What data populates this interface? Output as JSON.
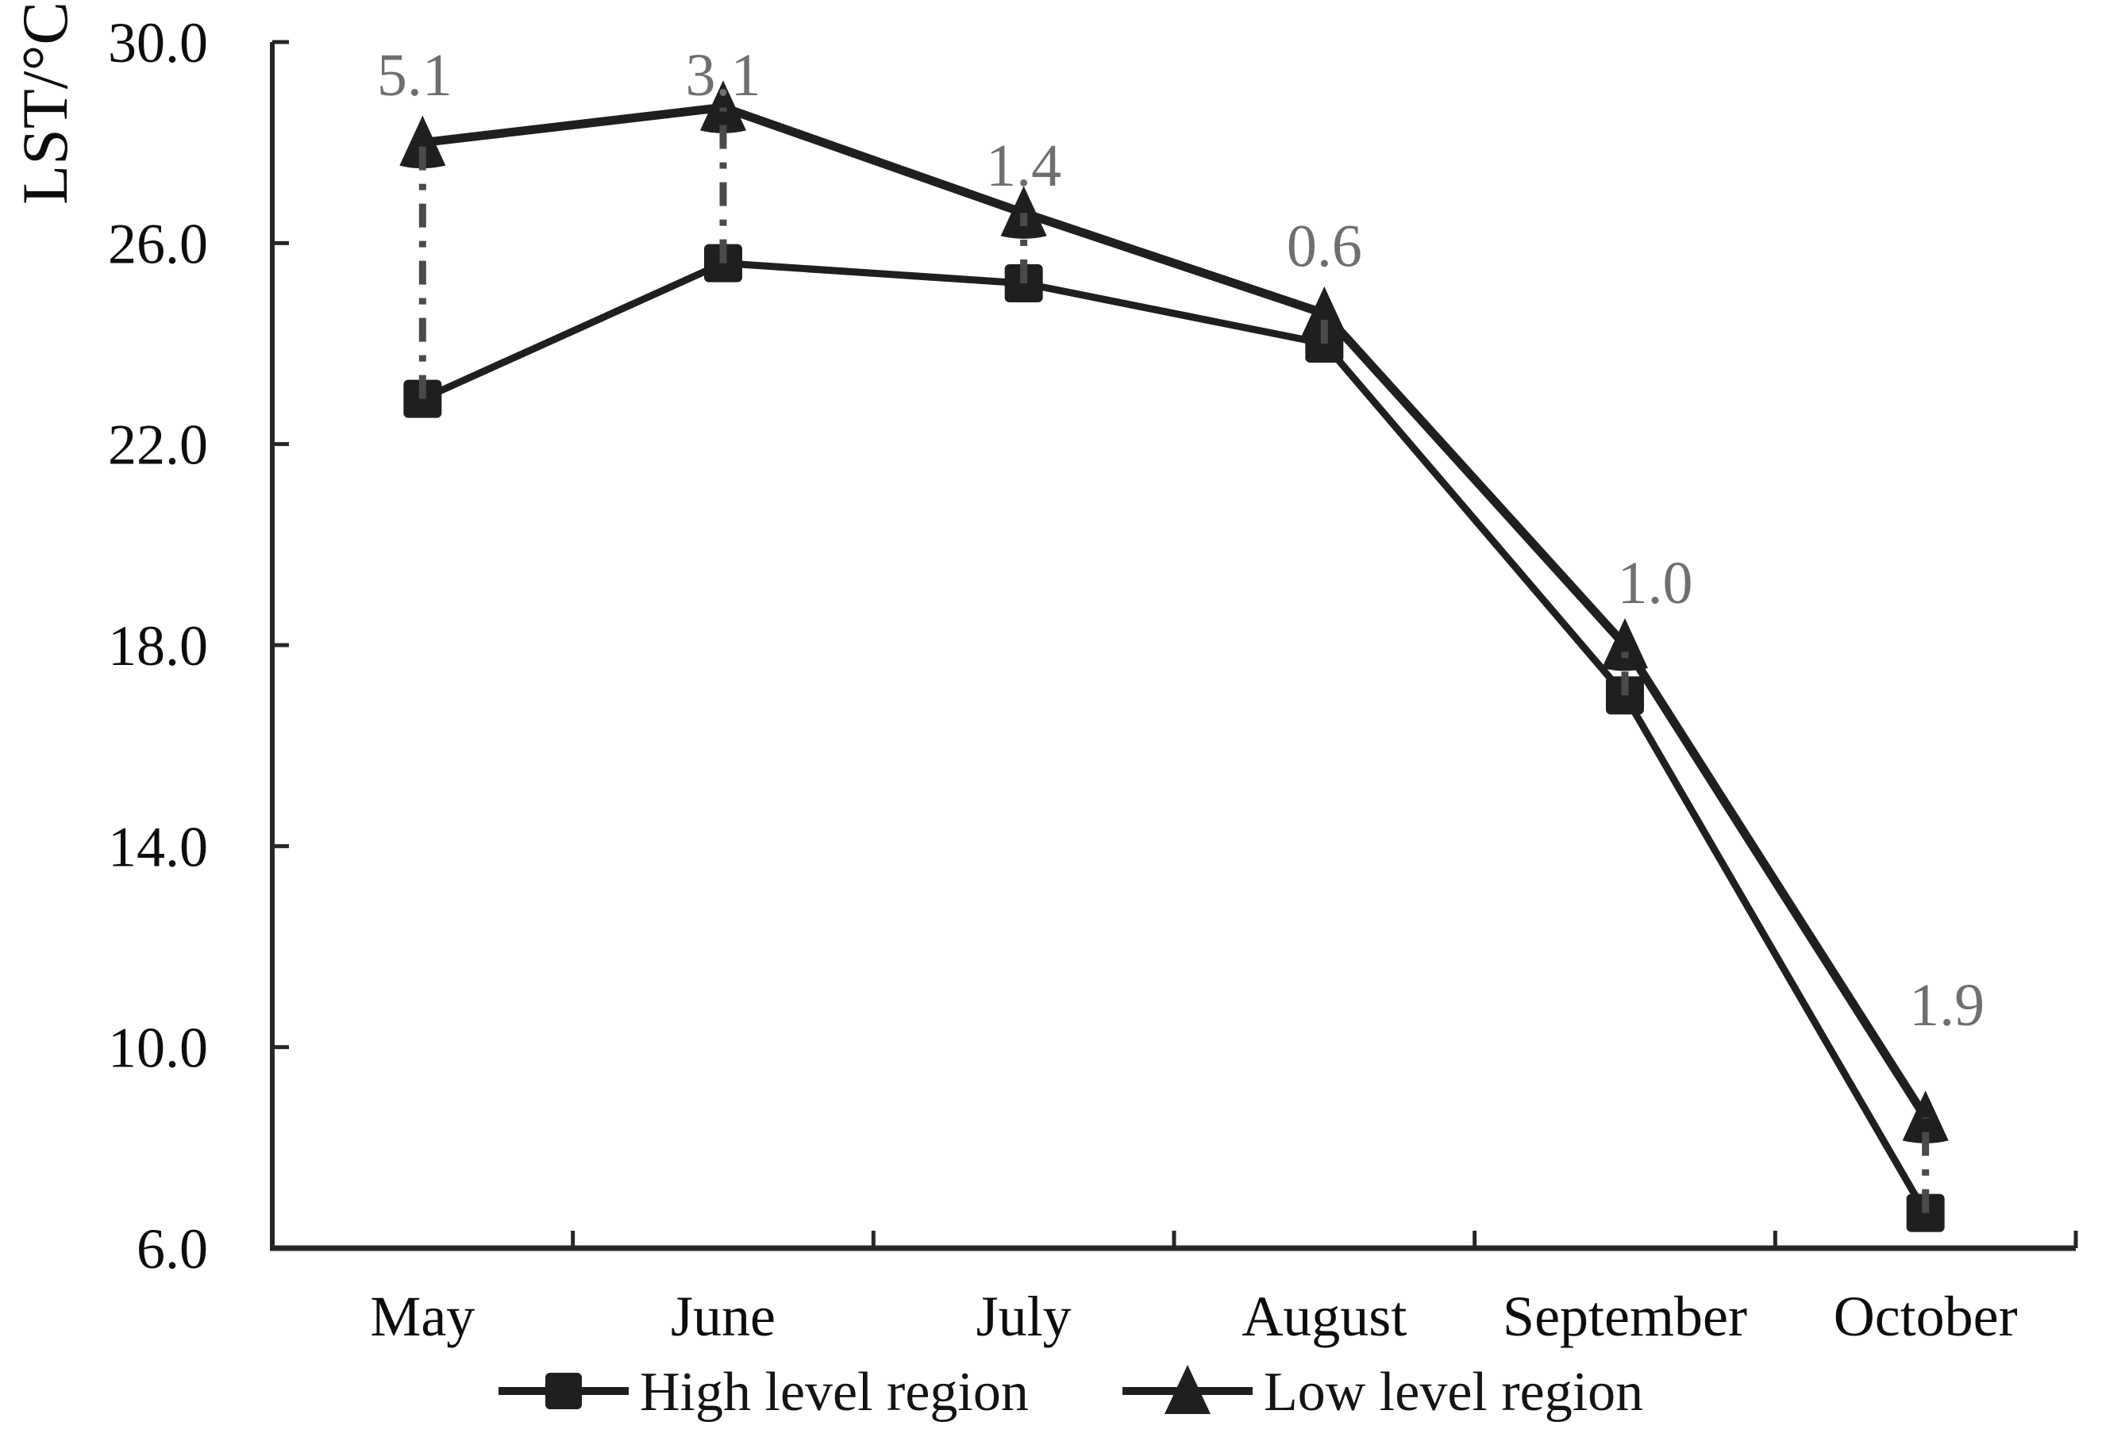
{
  "chart_data": {
    "type": "line",
    "title": "",
    "ylabel": "LST/°C",
    "xlabel": "",
    "ylim": [
      6.0,
      30.0
    ],
    "ytick_step": 4.0,
    "ytick_labels": [
      "30.0",
      "26.0",
      "22.0",
      "18.0",
      "14.0",
      "10.0",
      "6.0"
    ],
    "categories": [
      "May",
      "June",
      "July",
      "August",
      "September",
      "October"
    ],
    "series": [
      {
        "name": "High level region",
        "marker": "square",
        "values": [
          22.9,
          25.6,
          25.2,
          24.0,
          17.0,
          6.7
        ]
      },
      {
        "name": "Low level region",
        "marker": "triangle",
        "values": [
          28.0,
          28.7,
          26.6,
          24.6,
          18.0,
          8.6
        ]
      }
    ],
    "differences": [
      {
        "label": "5.1",
        "category": "May",
        "label_y": 29.35,
        "dx": -10
      },
      {
        "label": "3.1",
        "category": "June",
        "label_y": 29.35,
        "dx": 0
      },
      {
        "label": "1.4",
        "category": "July",
        "label_y": 27.55,
        "dx": 0
      },
      {
        "label": "0.6",
        "category": "August",
        "label_y": 25.95,
        "dx": 0
      },
      {
        "label": "1.0",
        "category": "September",
        "label_y": 19.25,
        "dx": 38
      },
      {
        "label": "1.9",
        "category": "October",
        "label_y": 10.85,
        "dx": 27
      }
    ],
    "legend": [
      "High level region",
      "Low level region"
    ],
    "legend_position": "bottom",
    "grid": false,
    "colors": {
      "series": "#1f1f1f",
      "axis": "#262626",
      "connector": "#4a4a4a",
      "annotation": "#6f6f6f",
      "background": "#ffffff"
    }
  }
}
